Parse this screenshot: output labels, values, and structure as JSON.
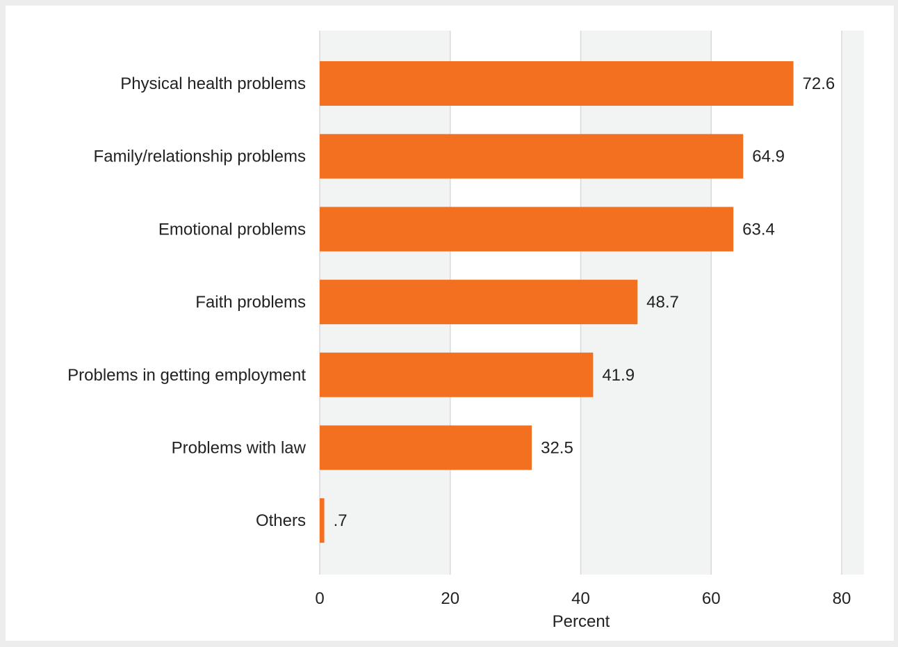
{
  "chart_data": {
    "type": "bar",
    "orientation": "horizontal",
    "categories": [
      "Physical health problems",
      "Family/relationship problems",
      "Emotional problems",
      "Faith problems",
      "Problems in getting employment",
      "Problems with law",
      "Others"
    ],
    "values": [
      72.6,
      64.9,
      63.4,
      48.7,
      41.9,
      32.5,
      0.7
    ],
    "value_labels": [
      "72.6",
      "64.9",
      "63.4",
      "48.7",
      "41.9",
      "32.5",
      ".7"
    ],
    "xlabel": "Percent",
    "ylabel": "",
    "xlim": [
      0,
      80
    ],
    "xticks": [
      0,
      20,
      40,
      60,
      80
    ],
    "grid": "vertical",
    "legend": "none",
    "colors": {
      "bar": "#f37021",
      "plot_band_light": "#f2f3f3",
      "plot_band_white": "#ffffff",
      "page_background": "#ededed",
      "plot_background": "#ffffff",
      "gridline": "#d9d9d9"
    }
  }
}
